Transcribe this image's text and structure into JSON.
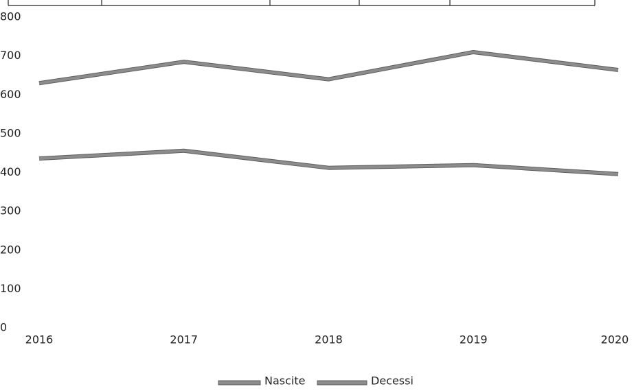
{
  "chart_data": {
    "type": "line",
    "categories": [
      "2016",
      "2017",
      "2018",
      "2019",
      "2020"
    ],
    "series": [
      {
        "name": "Nascite",
        "color": "#8c8c8c",
        "values": [
          436,
          456,
          412,
          419,
          396
        ]
      },
      {
        "name": "Decessi",
        "color": "#8c8c8c",
        "values": [
          630,
          685,
          640,
          710,
          664
        ]
      }
    ],
    "ylim": [
      0,
      800
    ],
    "yticks": [
      0,
      100,
      200,
      300,
      400,
      500,
      600,
      700,
      800
    ],
    "grid": false,
    "legend": "bottom"
  }
}
